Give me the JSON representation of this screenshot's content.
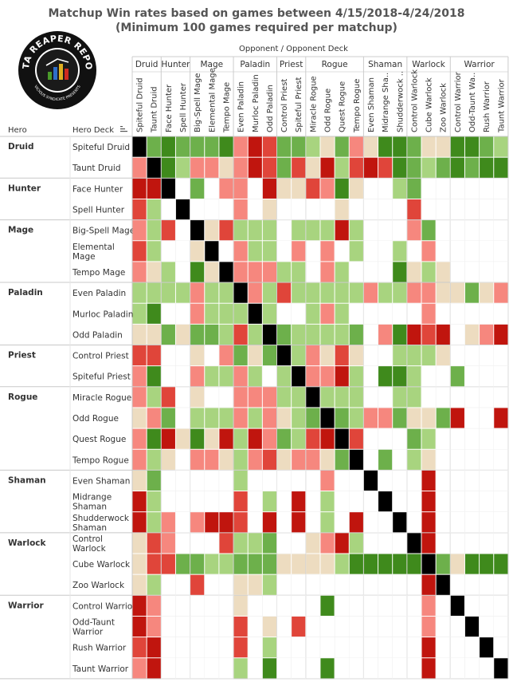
{
  "title": {
    "line1": "Matchup Win rates based on games between 4/15/2018-4/24/2018",
    "line2": "(Minimum 100 games required per matchup)"
  },
  "logo": {
    "text_top": "DATA REAPER REPORT",
    "text_bottom": "VICIOUS SYNDICATE PRESENTS"
  },
  "colors": {
    "dark_red": "#c0150e",
    "red": "#e0453a",
    "light_red": "#f6877e",
    "neutral": "#eddcc0",
    "light_green": "#a8d47f",
    "green": "#6db04b",
    "dark_green": "#3f8a1c",
    "mirror": "#000000",
    "grid": "#dddddd"
  },
  "chart_data": {
    "type": "heatmap",
    "title": "Matchup Win rates based on games between 4/15/2018-4/24/2018",
    "subtitle": "(Minimum 100 games required per matchup)",
    "column_header": "Opponent / Opponent Deck",
    "row_headers": [
      "Hero",
      "Hero Deck"
    ],
    "value_scale": "ordinal win-rate band from -3 (heavily unfavored, dark red) through 0 (even, beige) to 3 (heavily favored, dark green); 9 = mirror (black); null = no data",
    "classes": [
      {
        "name": "Druid",
        "decks": [
          "Spiteful Druid",
          "Taunt Druid"
        ]
      },
      {
        "name": "Hunter",
        "decks": [
          "Face Hunter",
          "Spell Hunter"
        ]
      },
      {
        "name": "Mage",
        "decks": [
          "Big-Spell Mage",
          "Elemental Mage",
          "Tempo Mage"
        ]
      },
      {
        "name": "Paladin",
        "decks": [
          "Even Paladin",
          "Murloc Paladin",
          "Odd Paladin"
        ]
      },
      {
        "name": "Priest",
        "decks": [
          "Control Priest",
          "Spiteful Priest"
        ]
      },
      {
        "name": "Rogue",
        "decks": [
          "Miracle Rogue",
          "Odd Rogue",
          "Quest Rogue",
          "Tempo Rogue"
        ]
      },
      {
        "name": "Shaman",
        "decks": [
          "Even Shaman",
          "Midrange Shaman",
          "Shudderwock Shaman"
        ]
      },
      {
        "name": "Warlock",
        "decks": [
          "Control Warlock",
          "Cube Warlock",
          "Zoo Warlock"
        ]
      },
      {
        "name": "Warrior",
        "decks": [
          "Control Warrior",
          "Odd-Taunt Warrior",
          "Rush Warrior",
          "Taunt Warrior"
        ]
      }
    ],
    "row_labels": [
      "Spiteful Druid",
      "Taunt Druid",
      "Face Hunter",
      "Spell Hunter",
      "Big-Spell Mage",
      "Elemental Mage",
      "Tempo Mage",
      "Even Paladin",
      "Murloc Paladin",
      "Odd Paladin",
      "Control Priest",
      "Spiteful Priest",
      "Miracle Rogue",
      "Odd Rogue",
      "Quest Rogue",
      "Tempo Rogue",
      "Even Shaman",
      "Midrange Shaman",
      "Shudderwock Shaman",
      "Control Warlock",
      "Cube Warlock",
      "Zoo Warlock",
      "Control Warrior",
      "Odd-Taunt Warrior",
      "Rush Warrior",
      "Taunt Warrior"
    ],
    "row_display": [
      [
        "Spiteful Druid"
      ],
      [
        "Taunt Druid"
      ],
      [
        "Face Hunter"
      ],
      [
        "Spell Hunter"
      ],
      [
        "Big-Spell Mage"
      ],
      [
        "Elemental",
        "Mage"
      ],
      [
        "Tempo Mage"
      ],
      [
        "Even Paladin"
      ],
      [
        "Murloc Paladin"
      ],
      [
        "Odd Paladin"
      ],
      [
        "Control Priest"
      ],
      [
        "Spiteful Priest"
      ],
      [
        "Miracle Rogue"
      ],
      [
        "Odd Rogue"
      ],
      [
        "Quest Rogue"
      ],
      [
        "Tempo Rogue"
      ],
      [
        "Even Shaman"
      ],
      [
        "Midrange",
        "Shaman"
      ],
      [
        "Shudderwock",
        "Shaman"
      ],
      [
        "Control",
        "Warlock"
      ],
      [
        "Cube Warlock"
      ],
      [
        "Zoo Warlock"
      ],
      [
        "Control Warrior"
      ],
      [
        "Odd-Taunt",
        "Warrior"
      ],
      [
        "Rush Warrior"
      ],
      [
        "Taunt Warrior"
      ]
    ],
    "column_labels": [
      "Spiteful Druid",
      "Taunt Druid",
      "Face Hunter",
      "Spell Hunter",
      "Big-Spell Mage",
      "Elemental Mage",
      "Tempo Mage",
      "Even Paladin",
      "Murloc Paladin",
      "Odd Paladin",
      "Control Priest",
      "Spiteful Priest",
      "Miracle Rogue",
      "Odd Rogue",
      "Quest Rogue",
      "Tempo Rogue",
      "Even Shaman",
      "Midrange Sha..",
      "Shudderwock ..",
      "Control Warlock",
      "Cube Warlock",
      "Zoo Warlock",
      "Control Warrior",
      "Odd-Taunt Wa..",
      "Rush Warrior",
      "Taunt Warrior"
    ],
    "values": [
      [
        9,
        2,
        3,
        2,
        2,
        2,
        3,
        -1,
        -3,
        -2,
        2,
        2,
        1,
        0,
        2,
        -1,
        0,
        3,
        3,
        2,
        0,
        0,
        3,
        3,
        2,
        1
      ],
      [
        -1,
        9,
        3,
        1,
        -1,
        -1,
        0,
        -1,
        -3,
        -2,
        2,
        -2,
        0,
        -3,
        1,
        -2,
        -3,
        -2,
        3,
        2,
        1,
        2,
        3,
        2,
        3,
        3
      ],
      [
        -3,
        -3,
        9,
        null,
        2,
        null,
        -1,
        -1,
        null,
        -3,
        0,
        0,
        -2,
        -1,
        3,
        0,
        null,
        null,
        1,
        2,
        null,
        null,
        null,
        null,
        null,
        null
      ],
      [
        -2,
        1,
        null,
        9,
        null,
        null,
        null,
        -1,
        null,
        0,
        null,
        null,
        null,
        null,
        0,
        null,
        null,
        null,
        null,
        -2,
        null,
        null,
        null,
        null,
        null,
        null
      ],
      [
        -1,
        1,
        -2,
        null,
        9,
        0,
        -2,
        1,
        1,
        1,
        null,
        1,
        1,
        1,
        -3,
        1,
        null,
        null,
        null,
        -1,
        2,
        null,
        null,
        null,
        null,
        null
      ],
      [
        -2,
        1,
        null,
        null,
        0,
        9,
        null,
        -1,
        1,
        1,
        null,
        -1,
        null,
        -1,
        null,
        1,
        null,
        null,
        1,
        null,
        -1,
        null,
        null,
        null,
        null,
        null
      ],
      [
        -1,
        0,
        1,
        null,
        3,
        0,
        9,
        -1,
        -1,
        -1,
        1,
        1,
        null,
        -1,
        1,
        null,
        null,
        null,
        3,
        0,
        1,
        0,
        null,
        null,
        null,
        null
      ],
      [
        1,
        1,
        1,
        1,
        -1,
        1,
        1,
        9,
        -1,
        1,
        -2,
        1,
        1,
        1,
        1,
        1,
        -1,
        1,
        1,
        -1,
        -1,
        0,
        0,
        2,
        0,
        -1
      ],
      [
        1,
        3,
        null,
        null,
        -1,
        1,
        1,
        1,
        9,
        1,
        null,
        null,
        1,
        -1,
        1,
        null,
        null,
        null,
        null,
        null,
        -1,
        null,
        null,
        null,
        null,
        null
      ],
      [
        0,
        0,
        2,
        0,
        2,
        2,
        1,
        -2,
        1,
        9,
        2,
        1,
        1,
        1,
        1,
        2,
        null,
        -1,
        3,
        -3,
        -2,
        -3,
        null,
        0,
        -1,
        -3
      ],
      [
        -2,
        -2,
        null,
        null,
        0,
        null,
        -1,
        2,
        0,
        2,
        9,
        1,
        -1,
        0,
        -2,
        0,
        null,
        null,
        1,
        1,
        1,
        0,
        null,
        null,
        null,
        null
      ],
      [
        -1,
        3,
        null,
        null,
        -1,
        1,
        1,
        -1,
        1,
        null,
        1,
        9,
        -1,
        -1,
        -3,
        1,
        null,
        3,
        3,
        1,
        null,
        null,
        2,
        null,
        null,
        null
      ],
      [
        -1,
        1,
        -2,
        null,
        0,
        null,
        null,
        -1,
        -1,
        -1,
        1,
        1,
        9,
        1,
        1,
        1,
        null,
        null,
        1,
        1,
        null,
        null,
        null,
        null,
        null,
        null
      ],
      [
        0,
        -1,
        2,
        null,
        1,
        1,
        1,
        -1,
        1,
        -1,
        0,
        1,
        2,
        9,
        2,
        1,
        -1,
        -1,
        2,
        0,
        0,
        2,
        -3,
        null,
        null,
        -3
      ],
      [
        -1,
        3,
        -3,
        0,
        3,
        0,
        -3,
        1,
        -3,
        -1,
        2,
        1,
        -2,
        -3,
        9,
        -2,
        null,
        null,
        null,
        2,
        1,
        null,
        null,
        null,
        null,
        null
      ],
      [
        -1,
        1,
        0,
        null,
        -1,
        -1,
        0,
        1,
        -1,
        -2,
        0,
        -1,
        -1,
        0,
        2,
        9,
        null,
        2,
        null,
        1,
        0,
        null,
        null,
        null,
        null,
        null
      ],
      [
        0,
        2,
        null,
        null,
        null,
        null,
        null,
        1,
        null,
        null,
        null,
        null,
        null,
        -1,
        null,
        null,
        9,
        null,
        null,
        null,
        -3,
        null,
        null,
        null,
        null,
        null
      ],
      [
        -3,
        1,
        null,
        null,
        null,
        null,
        null,
        -2,
        null,
        1,
        null,
        -3,
        null,
        1,
        null,
        null,
        null,
        9,
        null,
        null,
        -3,
        null,
        null,
        null,
        null,
        null
      ],
      [
        -3,
        1,
        -1,
        null,
        -1,
        -3,
        -3,
        -2,
        null,
        -3,
        null,
        -3,
        null,
        1,
        null,
        -3,
        null,
        null,
        9,
        null,
        -3,
        null,
        null,
        null,
        null,
        null
      ],
      [
        0,
        -2,
        -1,
        null,
        null,
        null,
        -2,
        1,
        1,
        2,
        null,
        null,
        0,
        -1,
        -3,
        1,
        null,
        null,
        null,
        9,
        -3,
        null,
        null,
        null,
        null,
        null
      ],
      [
        0,
        -2,
        -2,
        2,
        2,
        1,
        1,
        2,
        2,
        2,
        0,
        0,
        0,
        0,
        1,
        3,
        3,
        3,
        3,
        3,
        9,
        2,
        0,
        3,
        3,
        3
      ],
      [
        0,
        1,
        null,
        null,
        -2,
        null,
        null,
        0,
        0,
        1,
        null,
        null,
        null,
        null,
        null,
        null,
        null,
        null,
        null,
        null,
        -3,
        9,
        null,
        null,
        null,
        null
      ],
      [
        -3,
        -1,
        null,
        null,
        null,
        null,
        null,
        0,
        null,
        null,
        null,
        null,
        null,
        3,
        null,
        null,
        null,
        null,
        null,
        null,
        -1,
        null,
        9,
        null,
        null,
        null
      ],
      [
        -3,
        -1,
        null,
        null,
        null,
        null,
        null,
        -2,
        null,
        0,
        null,
        -2,
        null,
        null,
        null,
        null,
        null,
        null,
        null,
        null,
        -1,
        null,
        null,
        9,
        null,
        null
      ],
      [
        -2,
        -3,
        null,
        null,
        null,
        null,
        null,
        -2,
        null,
        1,
        null,
        null,
        null,
        null,
        null,
        null,
        null,
        null,
        null,
        null,
        -3,
        null,
        null,
        null,
        9,
        null
      ],
      [
        -1,
        -3,
        null,
        null,
        null,
        null,
        null,
        1,
        null,
        3,
        null,
        null,
        null,
        3,
        null,
        null,
        null,
        null,
        null,
        null,
        -3,
        null,
        null,
        null,
        null,
        9
      ]
    ],
    "grid": true,
    "legend": "none"
  }
}
